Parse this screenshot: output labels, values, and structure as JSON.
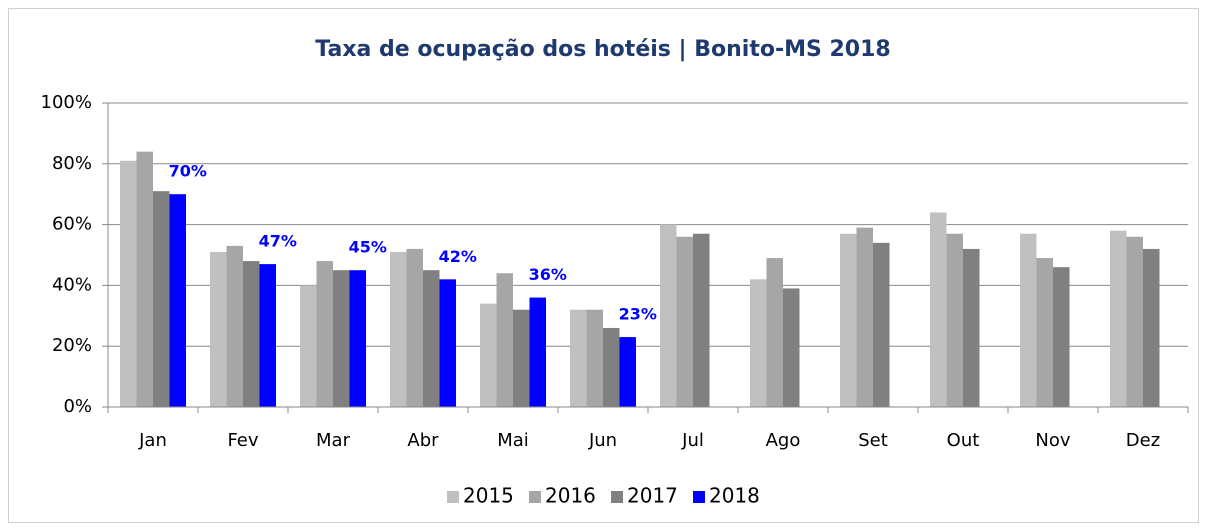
{
  "chart_data": {
    "type": "bar",
    "title": "Taxa de ocupação dos hotéis | Bonito-MS 2018",
    "categories": [
      "Jan",
      "Fev",
      "Mar",
      "Abr",
      "Mai",
      "Jun",
      "Jul",
      "Ago",
      "Set",
      "Out",
      "Nov",
      "Dez"
    ],
    "series": [
      {
        "name": "2015",
        "color": "#c0c0c0",
        "values": [
          81,
          51,
          40,
          51,
          34,
          32,
          60,
          42,
          57,
          64,
          57,
          58
        ]
      },
      {
        "name": "2016",
        "color": "#a6a6a6",
        "values": [
          84,
          53,
          48,
          52,
          44,
          32,
          56,
          49,
          59,
          57,
          49,
          56
        ]
      },
      {
        "name": "2017",
        "color": "#808080",
        "values": [
          71,
          48,
          45,
          45,
          32,
          26,
          57,
          39,
          54,
          52,
          46,
          52
        ]
      },
      {
        "name": "2018",
        "color": "#0000ff",
        "values": [
          70,
          47,
          45,
          42,
          36,
          23,
          null,
          null,
          null,
          null,
          null,
          null
        ],
        "value_labels": [
          "70%",
          "47%",
          "45%",
          "42%",
          "36%",
          "23%",
          null,
          null,
          null,
          null,
          null,
          null
        ]
      }
    ],
    "ylim": [
      0,
      100
    ],
    "yticks": [
      {
        "value": 0,
        "label": "0%"
      },
      {
        "value": 20,
        "label": "20%"
      },
      {
        "value": 40,
        "label": "40%"
      },
      {
        "value": 60,
        "label": "60%"
      },
      {
        "value": 80,
        "label": "80%"
      },
      {
        "value": 100,
        "label": "100%"
      }
    ],
    "grid": true,
    "legend": "bottom"
  }
}
